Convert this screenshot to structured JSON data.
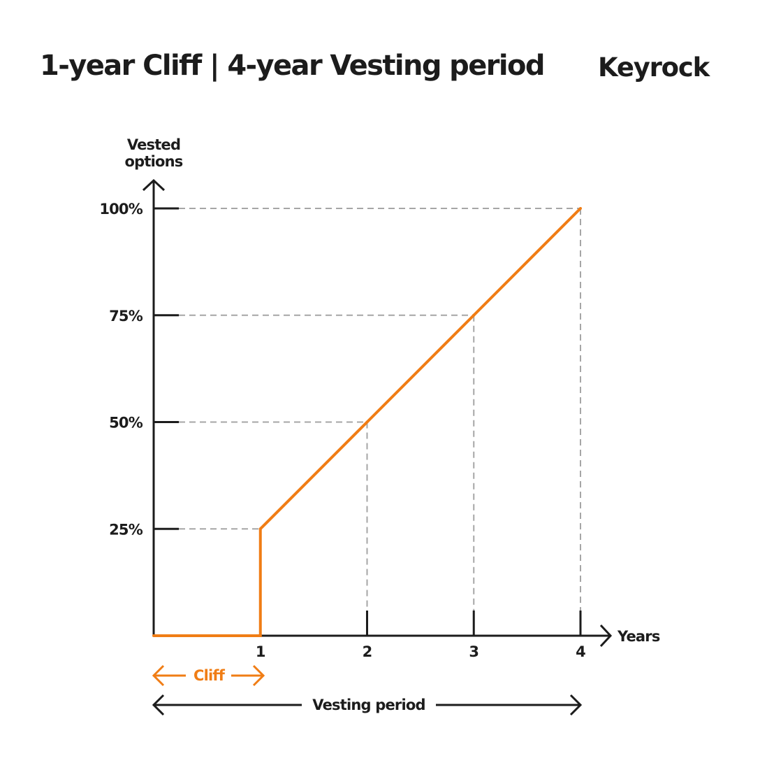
{
  "header": {
    "title": "1-year Cliff | 4-year Vesting period",
    "logo_text": "Keyrock"
  },
  "colors": {
    "line": "#f07d15",
    "axis": "#1c1c1c",
    "grid": "#a6a6a6",
    "text": "#1c1c1c"
  },
  "chart_data": {
    "type": "line",
    "title": "1-year Cliff | 4-year Vesting period",
    "ylabel_line1": "Vested",
    "ylabel_line2": "options",
    "xlabel": "Years",
    "xlim": [
      0,
      4
    ],
    "ylim": [
      0,
      100
    ],
    "x_ticks": [
      1,
      2,
      3,
      4
    ],
    "x_tick_labels": [
      "1",
      "2",
      "3",
      "4"
    ],
    "y_ticks": [
      25,
      50,
      75,
      100
    ],
    "y_tick_labels": [
      "25%",
      "50%",
      "75%",
      "100%"
    ],
    "grid": "dashed reference lines at vesting points",
    "series": [
      {
        "points": [
          [
            0,
            0
          ],
          [
            1,
            0
          ],
          [
            1,
            25
          ],
          [
            2,
            50
          ],
          [
            3,
            75
          ],
          [
            4,
            100
          ]
        ]
      }
    ],
    "annotations": {
      "cliff_label": "Cliff",
      "cliff_range": [
        0,
        1
      ],
      "vesting_label": "Vesting period",
      "vesting_range": [
        0,
        4
      ]
    }
  }
}
